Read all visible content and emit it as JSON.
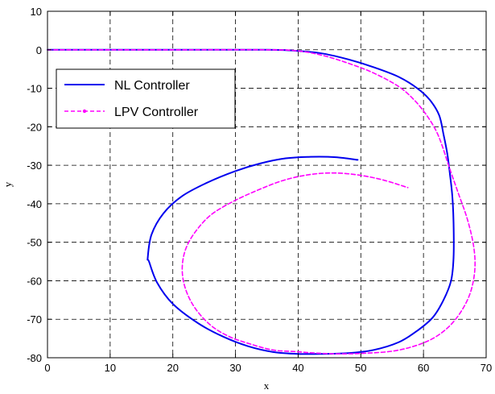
{
  "chart_data": {
    "type": "line",
    "xlabel": "x",
    "ylabel": "y",
    "xlim": [
      0,
      70
    ],
    "ylim": [
      -80,
      10
    ],
    "xticks": [
      "0",
      "10",
      "20",
      "30",
      "40",
      "50",
      "60",
      "70"
    ],
    "yticks": [
      "10",
      "0",
      "-10",
      "-20",
      "-30",
      "-40",
      "-50",
      "-60",
      "-70",
      "-80"
    ],
    "grid": true,
    "legend_position": "top-left",
    "series": [
      {
        "name": "NL Controller",
        "color": "#0000ee",
        "style": "solid",
        "x": [
          0,
          20,
          35,
          40,
          44,
          48,
          52,
          56,
          59,
          61,
          62.5,
          63.2,
          63.8,
          64.2,
          64.6,
          64.8,
          64.8,
          64.4,
          63.2,
          61.5,
          59,
          56,
          52,
          48,
          44,
          40,
          36,
          32,
          28,
          24,
          20,
          17.5,
          16.2,
          16,
          16.6,
          18.5,
          21.5,
          25.5,
          30,
          34,
          38,
          42,
          46,
          49.5
        ],
        "y": [
          0,
          0,
          0,
          -0.3,
          -1,
          -2.5,
          -4.5,
          -7,
          -10,
          -13,
          -17,
          -22,
          -27,
          -32,
          -38,
          -45,
          -54,
          -60,
          -65,
          -69.5,
          -73,
          -76,
          -78,
          -78.8,
          -79,
          -79,
          -78.5,
          -77,
          -74.5,
          -71,
          -66,
          -60.5,
          -55,
          -54,
          -48,
          -42.5,
          -38,
          -34.5,
          -31.5,
          -29.5,
          -28.2,
          -27.8,
          -27.9,
          -28.6
        ]
      },
      {
        "name": "LPV Controller",
        "color": "#ff00ff",
        "style": "dashed",
        "x": [
          0,
          20,
          35,
          40,
          44,
          48,
          52,
          56,
          58.5,
          60.5,
          62,
          63,
          64,
          65.5,
          67,
          68,
          68.2,
          67.5,
          66,
          64,
          61.5,
          58.5,
          55,
          51,
          47,
          43,
          39.5,
          36,
          32.5,
          29,
          26,
          23.5,
          22,
          21.5,
          22,
          23.5,
          26,
          29.5,
          33.5,
          37.5,
          41.5,
          45.5,
          49.5,
          53.5,
          57.5
        ],
        "y": [
          0,
          0,
          0,
          -0.3,
          -1.5,
          -3.5,
          -6,
          -9.5,
          -13,
          -17,
          -21,
          -25,
          -30,
          -37,
          -44,
          -51,
          -57,
          -63,
          -68,
          -72,
          -75,
          -77,
          -78.3,
          -78.8,
          -79,
          -78.8,
          -78.4,
          -78,
          -76.5,
          -74.5,
          -71.5,
          -67,
          -62,
          -57,
          -52,
          -47.5,
          -43,
          -39.5,
          -36.5,
          -34,
          -32.5,
          -32,
          -32.5,
          -33.8,
          -35.8
        ]
      }
    ]
  }
}
